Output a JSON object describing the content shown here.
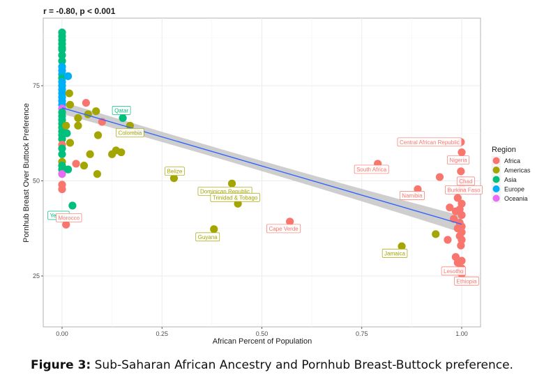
{
  "caption": {
    "label": "Figure 3:",
    "text": "Sub-Saharan African Ancestry and Pornhub Breast-Buttock preference."
  },
  "chart_data": {
    "type": "scatter",
    "title": "r = -0.80, p < 0.001",
    "xlabel": "African Percent of Population",
    "ylabel": "Pornhub Breast Over Buttock Preference",
    "xlim": [
      -0.05,
      1.05
    ],
    "ylim": [
      12,
      93
    ],
    "xticks": [
      0,
      0.25,
      0.5,
      0.75,
      1.0
    ],
    "xtick_labels": [
      "0.00",
      "0.25",
      "0.50",
      "0.75",
      "1.00"
    ],
    "yticks": [
      25,
      50,
      75
    ],
    "ytick_labels": [
      "25",
      "50",
      "75"
    ],
    "grid": true,
    "legend": {
      "title": "Region",
      "position": "right",
      "entries": [
        {
          "name": "Africa",
          "color": "#F8766D"
        },
        {
          "name": "Americas",
          "color": "#A3A500"
        },
        {
          "name": "Asia",
          "color": "#00BF7D"
        },
        {
          "name": "Europe",
          "color": "#00B0F6"
        },
        {
          "name": "Oceania",
          "color": "#E76BF3"
        }
      ]
    },
    "regression": {
      "x": [
        0,
        1
      ],
      "y": [
        69.2,
        38.6
      ],
      "ci_halfwidth_at_ends": [
        1.6,
        2.2
      ],
      "ci_halfwidth_mid": 0.8,
      "color": "#3366FF",
      "ci_color": "#BEBEBE"
    },
    "points": [
      {
        "x": 0.0,
        "y": 89.0,
        "region": "Asia"
      },
      {
        "x": 0.0,
        "y": 88.0,
        "region": "Asia"
      },
      {
        "x": 0.0,
        "y": 87.0,
        "region": "Asia"
      },
      {
        "x": 0.0,
        "y": 86.0,
        "region": "Asia"
      },
      {
        "x": 0.0,
        "y": 85.0,
        "region": "Asia"
      },
      {
        "x": 0.0,
        "y": 84.5,
        "region": "Asia"
      },
      {
        "x": 0.0,
        "y": 83.0,
        "region": "Asia"
      },
      {
        "x": 0.0,
        "y": 81.5,
        "region": "Asia"
      },
      {
        "x": 0.0,
        "y": 80.0,
        "region": "Europe"
      },
      {
        "x": 0.0,
        "y": 79.0,
        "region": "Europe"
      },
      {
        "x": 0.0,
        "y": 78.0,
        "region": "Europe"
      },
      {
        "x": 0.0,
        "y": 77.0,
        "region": "Asia"
      },
      {
        "x": 0.0,
        "y": 76.0,
        "region": "Europe"
      },
      {
        "x": 0.0,
        "y": 75.0,
        "region": "Europe"
      },
      {
        "x": 0.0,
        "y": 74.0,
        "region": "Europe"
      },
      {
        "x": 0.0,
        "y": 73.0,
        "region": "Europe"
      },
      {
        "x": 0.0,
        "y": 72.0,
        "region": "Europe"
      },
      {
        "x": 0.0,
        "y": 71.0,
        "region": "Europe"
      },
      {
        "x": 0.0,
        "y": 70.0,
        "region": "Europe"
      },
      {
        "x": 0.0,
        "y": 69.0,
        "region": "Oceania"
      },
      {
        "x": 0.0,
        "y": 68.0,
        "region": "Asia"
      },
      {
        "x": 0.0,
        "y": 67.0,
        "region": "Asia"
      },
      {
        "x": 0.0,
        "y": 66.0,
        "region": "Asia"
      },
      {
        "x": 0.0,
        "y": 65.0,
        "region": "Asia"
      },
      {
        "x": 0.0,
        "y": 64.0,
        "region": "Asia"
      },
      {
        "x": 0.0,
        "y": 63.0,
        "region": "Asia"
      },
      {
        "x": 0.0,
        "y": 62.0,
        "region": "Asia"
      },
      {
        "x": 0.0,
        "y": 61.0,
        "region": "Asia"
      },
      {
        "x": 0.0,
        "y": 59.5,
        "region": "Africa"
      },
      {
        "x": 0.0,
        "y": 58.5,
        "region": "Asia"
      },
      {
        "x": 0.0,
        "y": 57.0,
        "region": "Asia"
      },
      {
        "x": 0.0,
        "y": 55.0,
        "region": "Americas"
      },
      {
        "x": 0.0,
        "y": 54.0,
        "region": "Asia"
      },
      {
        "x": 0.0,
        "y": 53.0,
        "region": "Asia"
      },
      {
        "x": 0.0,
        "y": 51.8,
        "region": "Oceania"
      },
      {
        "x": 0.0,
        "y": 49.0,
        "region": "Africa"
      },
      {
        "x": 0.0,
        "y": 47.8,
        "region": "Africa"
      },
      {
        "x": 0.015,
        "y": 77.5,
        "region": "Europe"
      },
      {
        "x": 0.018,
        "y": 73.0,
        "region": "Americas"
      },
      {
        "x": 0.02,
        "y": 70.0,
        "region": "Americas"
      },
      {
        "x": 0.01,
        "y": 64.5,
        "region": "Americas"
      },
      {
        "x": 0.012,
        "y": 62.5,
        "region": "Asia"
      },
      {
        "x": 0.02,
        "y": 60.0,
        "region": "Americas"
      },
      {
        "x": 0.015,
        "y": 53.0,
        "region": "Asia"
      },
      {
        "x": 0.06,
        "y": 70.5,
        "region": "Africa"
      },
      {
        "x": 0.04,
        "y": 66.5,
        "region": "Americas"
      },
      {
        "x": 0.04,
        "y": 64.5,
        "region": "Americas"
      },
      {
        "x": 0.065,
        "y": 67.5,
        "region": "Americas"
      },
      {
        "x": 0.085,
        "y": 68.3,
        "region": "Americas"
      },
      {
        "x": 0.1,
        "y": 65.5,
        "region": "Africa"
      },
      {
        "x": 0.09,
        "y": 62.0,
        "region": "Americas"
      },
      {
        "x": 0.07,
        "y": 57.0,
        "region": "Americas"
      },
      {
        "x": 0.035,
        "y": 54.5,
        "region": "Africa"
      },
      {
        "x": 0.055,
        "y": 54.0,
        "region": "Americas"
      },
      {
        "x": 0.088,
        "y": 51.8,
        "region": "Americas"
      },
      {
        "x": 0.125,
        "y": 57.0,
        "region": "Americas"
      },
      {
        "x": 0.135,
        "y": 58.0,
        "region": "Americas"
      },
      {
        "x": 0.148,
        "y": 57.5,
        "region": "Americas"
      },
      {
        "x": 0.026,
        "y": 43.5,
        "region": "Asia",
        "label": "Yemen"
      },
      {
        "x": 0.01,
        "y": 38.5,
        "region": "Africa",
        "label": "Morocco"
      },
      {
        "x": 0.152,
        "y": 66.5,
        "region": "Asia",
        "label": "Qatar"
      },
      {
        "x": 0.17,
        "y": 64.5,
        "region": "Americas",
        "label": "Colombia"
      },
      {
        "x": 0.28,
        "y": 50.7,
        "region": "Americas",
        "label": "Belize"
      },
      {
        "x": 0.425,
        "y": 49.3,
        "region": "Americas",
        "label": "Dominican Republic"
      },
      {
        "x": 0.44,
        "y": 44.0,
        "region": "Americas",
        "label": "Trinidad & Tobago"
      },
      {
        "x": 0.38,
        "y": 37.3,
        "region": "Americas",
        "label": "Guyana"
      },
      {
        "x": 0.57,
        "y": 39.3,
        "region": "Africa",
        "label": "Cape Verde"
      },
      {
        "x": 0.79,
        "y": 54.5,
        "region": "Africa",
        "label": "South Africa"
      },
      {
        "x": 0.89,
        "y": 47.8,
        "region": "Africa",
        "label": "Namibia"
      },
      {
        "x": 0.85,
        "y": 32.8,
        "region": "Americas",
        "label": "Jamaica"
      },
      {
        "x": 0.935,
        "y": 36.0,
        "region": "Americas"
      },
      {
        "x": 0.945,
        "y": 51.0,
        "region": "Africa"
      },
      {
        "x": 0.97,
        "y": 43.0,
        "region": "Africa"
      },
      {
        "x": 0.965,
        "y": 34.5,
        "region": "Africa"
      },
      {
        "x": 0.998,
        "y": 60.2,
        "region": "Africa",
        "label": "Central African Republic"
      },
      {
        "x": 1.0,
        "y": 57.5,
        "region": "Africa",
        "label": "Nigeria"
      },
      {
        "x": 0.998,
        "y": 52.5,
        "region": "Africa",
        "label": "Chad"
      },
      {
        "x": 1.0,
        "y": 50.0,
        "region": "Africa"
      },
      {
        "x": 1.0,
        "y": 48.0,
        "region": "Africa",
        "label": "Burkina Faso"
      },
      {
        "x": 0.99,
        "y": 45.5,
        "region": "Africa"
      },
      {
        "x": 1.0,
        "y": 44.0,
        "region": "Africa"
      },
      {
        "x": 0.995,
        "y": 42.5,
        "region": "Africa"
      },
      {
        "x": 0.985,
        "y": 42.0,
        "region": "Africa"
      },
      {
        "x": 1.0,
        "y": 41.0,
        "region": "Africa"
      },
      {
        "x": 0.98,
        "y": 40.0,
        "region": "Africa"
      },
      {
        "x": 0.995,
        "y": 39.0,
        "region": "Africa"
      },
      {
        "x": 1.0,
        "y": 38.0,
        "region": "Africa"
      },
      {
        "x": 0.99,
        "y": 37.5,
        "region": "Africa"
      },
      {
        "x": 1.0,
        "y": 36.5,
        "region": "Africa"
      },
      {
        "x": 0.995,
        "y": 35.5,
        "region": "Africa"
      },
      {
        "x": 1.0,
        "y": 34.5,
        "region": "Africa"
      },
      {
        "x": 0.998,
        "y": 33.0,
        "region": "Africa"
      },
      {
        "x": 0.985,
        "y": 30.0,
        "region": "Africa"
      },
      {
        "x": 1.0,
        "y": 29.0,
        "region": "Africa"
      },
      {
        "x": 0.99,
        "y": 28.5,
        "region": "Africa",
        "label": "Lesotho"
      },
      {
        "x": 1.0,
        "y": 27.0,
        "region": "Africa"
      },
      {
        "x": 1.0,
        "y": 25.5,
        "region": "Africa",
        "label": "Ethiopia"
      }
    ]
  }
}
